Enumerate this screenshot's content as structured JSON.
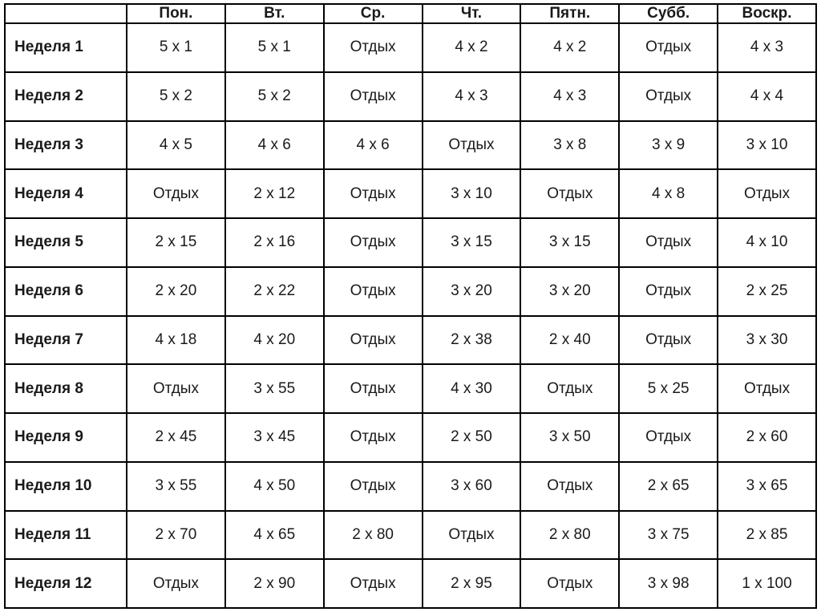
{
  "colors": {
    "border": "#000000",
    "text": "#1a1a1a",
    "background": "#ffffff"
  },
  "chart_data": {
    "type": "table",
    "title": "",
    "columns": [
      "",
      "Пон.",
      "Вт.",
      "Ср.",
      "Чт.",
      "Пятн.",
      "Субб.",
      "Воскр."
    ],
    "rows": [
      {
        "label": "Неделя 1",
        "cells": [
          "5 x 1",
          "5 x 1",
          "Отдых",
          "4 x 2",
          "4 x 2",
          "Отдых",
          "4 x 3"
        ]
      },
      {
        "label": "Неделя 2",
        "cells": [
          "5 x 2",
          "5 x 2",
          "Отдых",
          "4 x 3",
          "4 x 3",
          "Отдых",
          "4 x 4"
        ]
      },
      {
        "label": "Неделя 3",
        "cells": [
          "4 x 5",
          "4 x 6",
          "4 x 6",
          "Отдых",
          "3 x 8",
          "3 x 9",
          "3 x 10"
        ]
      },
      {
        "label": "Неделя 4",
        "cells": [
          "Отдых",
          "2 x 12",
          "Отдых",
          "3 x 10",
          "Отдых",
          "4 x 8",
          "Отдых"
        ]
      },
      {
        "label": "Неделя 5",
        "cells": [
          "2 x 15",
          "2 x 16",
          "Отдых",
          "3 x 15",
          "3 x 15",
          "Отдых",
          "4 x 10"
        ]
      },
      {
        "label": "Неделя 6",
        "cells": [
          "2 x 20",
          "2 x 22",
          "Отдых",
          "3 x 20",
          "3 x 20",
          "Отдых",
          "2 x 25"
        ]
      },
      {
        "label": "Неделя 7",
        "cells": [
          "4 x 18",
          "4 x 20",
          "Отдых",
          "2 x 38",
          "2 x 40",
          "Отдых",
          "3 x 30"
        ]
      },
      {
        "label": "Неделя 8",
        "cells": [
          "Отдых",
          "3 x 55",
          "Отдых",
          "4 x 30",
          "Отдых",
          "5 x 25",
          "Отдых"
        ]
      },
      {
        "label": "Неделя 9",
        "cells": [
          "2 x 45",
          "3 x 45",
          "Отдых",
          "2 x 50",
          "3 x 50",
          "Отдых",
          "2 x 60"
        ]
      },
      {
        "label": "Неделя 10",
        "cells": [
          "3 x 55",
          "4 x 50",
          "Отдых",
          "3 x 60",
          "Отдых",
          "2 x 65",
          "3 x 65"
        ]
      },
      {
        "label": "Неделя 11",
        "cells": [
          "2 x 70",
          "4 x 65",
          "2 x 80",
          "Отдых",
          "2 x 80",
          "3 x 75",
          "2 x 85"
        ]
      },
      {
        "label": "Неделя 12",
        "cells": [
          "Отдых",
          "2 x 90",
          "Отдых",
          "2 x 95",
          "Отдых",
          "3 x 98",
          "1 x 100"
        ]
      }
    ]
  }
}
